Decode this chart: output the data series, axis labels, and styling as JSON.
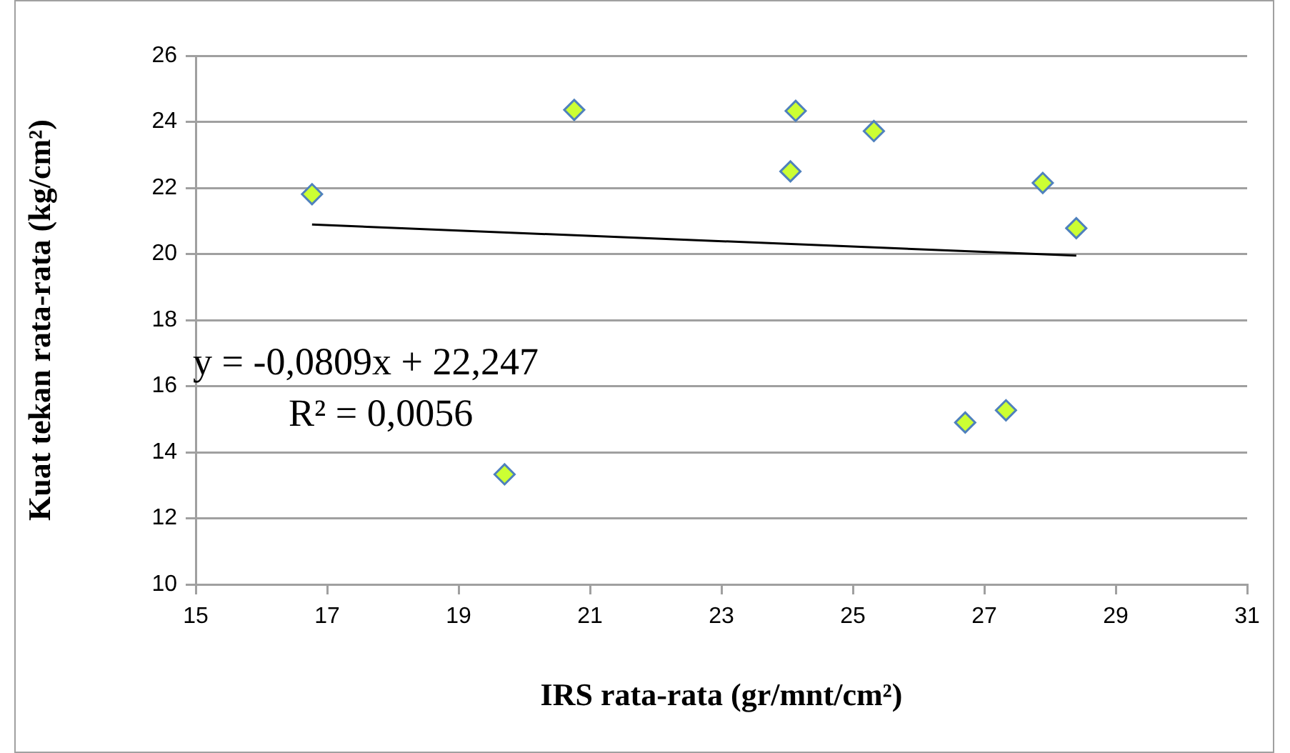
{
  "chart_data": {
    "type": "scatter",
    "xlabel": "IRS rata-rata (gr/mnt/cm²)",
    "ylabel": "Kuat tekan rata-rata (kg/cm²)",
    "series": [
      {
        "color": "#ccff33",
        "x": [
          16.77,
          20.76,
          19.7,
          24.13,
          24.05,
          25.32,
          27.89,
          28.4,
          26.71,
          27.33
        ],
        "values": [
          21.81,
          24.36,
          13.33,
          24.33,
          22.5,
          23.72,
          22.15,
          20.78,
          14.9,
          15.27
        ],
        "marker": "diamond"
      },
      {
        "type": "line",
        "color": "#000000",
        "x": [
          16.77,
          28.4
        ],
        "values": [
          20.89,
          19.95
        ],
        "marker": "none"
      }
    ],
    "xlim": [
      15,
      31
    ],
    "xticks": [
      15,
      17,
      19,
      21,
      23,
      25,
      27,
      29,
      31
    ],
    "ylim": [
      10,
      26
    ],
    "yticks": [
      10,
      12,
      14,
      16,
      18,
      20,
      22,
      24,
      26
    ],
    "grid": "y",
    "legend": false,
    "annotations": [
      "y = -0,0809x + 22,247",
      "R² = 0,0056"
    ]
  }
}
